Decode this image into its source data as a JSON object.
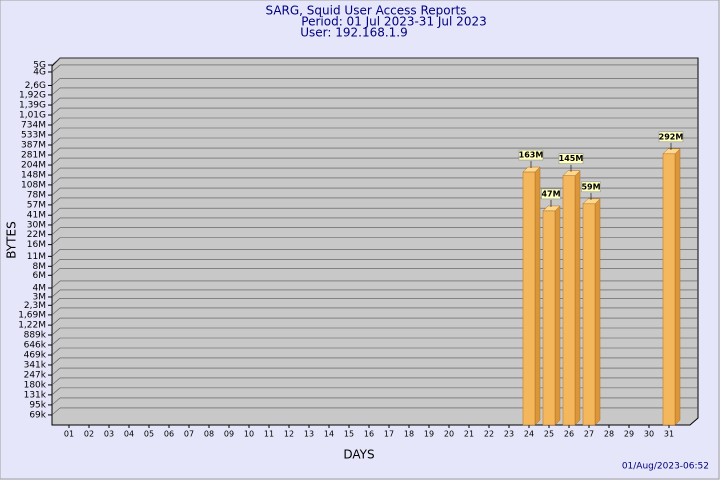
{
  "chart_data": {
    "type": "bar",
    "title": "SARG, Squid User Access Reports",
    "subtitle": [
      "Period: 01 Jul 2023-31 Jul 2023",
      "User: 192.168.1.9"
    ],
    "x_label": "DAYS",
    "y_label": "BYTES",
    "footer": "01/Aug/2023-06:52",
    "categories": [
      "01",
      "02",
      "03",
      "04",
      "05",
      "06",
      "07",
      "08",
      "09",
      "10",
      "11",
      "12",
      "13",
      "14",
      "15",
      "16",
      "17",
      "18",
      "19",
      "20",
      "21",
      "22",
      "23",
      "24",
      "25",
      "26",
      "27",
      "28",
      "29",
      "30",
      "31"
    ],
    "values": [
      null,
      null,
      null,
      null,
      null,
      null,
      null,
      null,
      null,
      null,
      null,
      null,
      null,
      null,
      null,
      null,
      null,
      null,
      null,
      null,
      null,
      null,
      null,
      163000000,
      47000000,
      145000000,
      59000000,
      null,
      null,
      null,
      292000000
    ],
    "value_labels": [
      null,
      null,
      null,
      null,
      null,
      null,
      null,
      null,
      null,
      null,
      null,
      null,
      null,
      null,
      null,
      null,
      null,
      null,
      null,
      null,
      null,
      null,
      null,
      "163M",
      "47M",
      "145M",
      "59M",
      null,
      null,
      null,
      "292M"
    ],
    "color": "#f5b75c",
    "log_scale": true,
    "grid": true,
    "ylim": [
      50000,
      5000000000
    ],
    "yticks": [
      {
        "value": 69000,
        "label": "69k"
      },
      {
        "value": 95000,
        "label": "95k"
      },
      {
        "value": 131000,
        "label": "131k"
      },
      {
        "value": 180000,
        "label": "180k"
      },
      {
        "value": 247000,
        "label": "247k"
      },
      {
        "value": 341000,
        "label": "341k"
      },
      {
        "value": 469000,
        "label": "469k"
      },
      {
        "value": 646000,
        "label": "646k"
      },
      {
        "value": 889000,
        "label": "889k"
      },
      {
        "value": 1220000,
        "label": "1,22M"
      },
      {
        "value": 1690000,
        "label": "1,69M"
      },
      {
        "value": 2300000,
        "label": "2,3M"
      },
      {
        "value": 3000000,
        "label": "3M"
      },
      {
        "value": 4000000,
        "label": "4M"
      },
      {
        "value": 6000000,
        "label": "6M"
      },
      {
        "value": 8000000,
        "label": "8M"
      },
      {
        "value": 11000000,
        "label": "11M"
      },
      {
        "value": 16000000,
        "label": "16M"
      },
      {
        "value": 22000000,
        "label": "22M"
      },
      {
        "value": 30000000,
        "label": "30M"
      },
      {
        "value": 41000000,
        "label": "41M"
      },
      {
        "value": 57000000,
        "label": "57M"
      },
      {
        "value": 78000000,
        "label": "78M"
      },
      {
        "value": 108000000,
        "label": "108M"
      },
      {
        "value": 148000000,
        "label": "148M"
      },
      {
        "value": 204000000,
        "label": "204M"
      },
      {
        "value": 281000000,
        "label": "281M"
      },
      {
        "value": 387000000,
        "label": "387M"
      },
      {
        "value": 533000000,
        "label": "533M"
      },
      {
        "value": 734000000,
        "label": "734M"
      },
      {
        "value": 1010000000,
        "label": "1,01G"
      },
      {
        "value": 1390000000,
        "label": "1,39G"
      },
      {
        "value": 1920000000,
        "label": "1,92G"
      },
      {
        "value": 2600000000,
        "label": "2,6G"
      },
      {
        "value": 4000000000,
        "label": "4G"
      },
      {
        "value": 5000000000,
        "label": "5G"
      }
    ]
  }
}
